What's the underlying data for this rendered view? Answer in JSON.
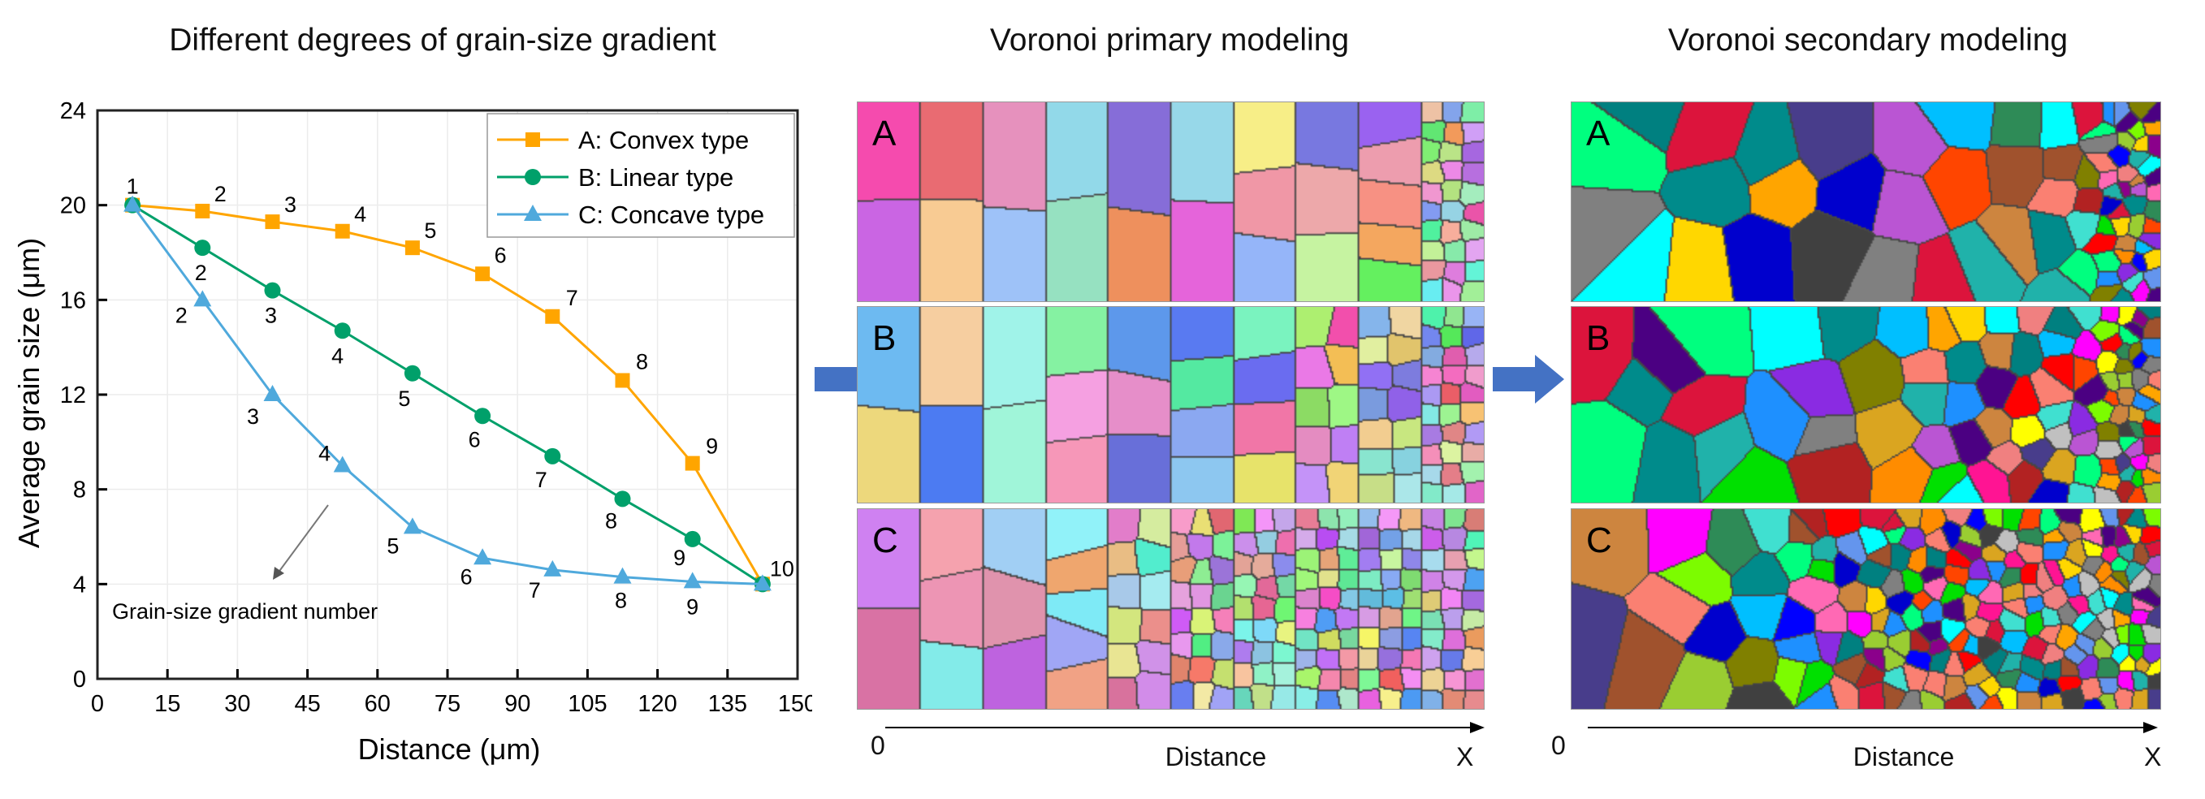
{
  "titles": {
    "chart": "Different degrees of grain-size gradient",
    "primary": "Voronoi primary modeling",
    "secondary": "Voronoi secondary modeling"
  },
  "chart_data": {
    "type": "line",
    "title": "Different degrees of grain-size gradient",
    "xlabel": "Distance (μm)",
    "ylabel": "Average grain size (μm)",
    "xlim": [
      0,
      150
    ],
    "ylim": [
      0,
      24
    ],
    "xticks": [
      "0",
      "15",
      "30",
      "45",
      "60",
      "75",
      "90",
      "105",
      "120",
      "135",
      "150"
    ],
    "yticks": [
      "0",
      "4",
      "8",
      "12",
      "16",
      "20",
      "24"
    ],
    "grid": true,
    "legend_position": "top-right",
    "x": [
      7.5,
      22.5,
      37.5,
      52.5,
      67.5,
      82.5,
      97.5,
      112.5,
      127.5,
      142.5
    ],
    "point_labels": [
      "1",
      "2",
      "3",
      "4",
      "5",
      "6",
      "7",
      "8",
      "9",
      "10"
    ],
    "series": [
      {
        "name": "A: Convex type",
        "marker": "square",
        "color": "#FFA500",
        "values": [
          20,
          19.75,
          19.3,
          18.9,
          18.2,
          17.1,
          15.3,
          12.6,
          9.1,
          4
        ]
      },
      {
        "name": "B: Linear type",
        "marker": "circle",
        "color": "#00A06A",
        "values": [
          20,
          18.2,
          16.4,
          14.7,
          12.9,
          11.1,
          9.4,
          7.6,
          5.9,
          4
        ]
      },
      {
        "name": "C: Concave type",
        "marker": "triangle",
        "color": "#4FA9DC",
        "values": [
          20,
          16.0,
          12.0,
          9.0,
          6.4,
          5.1,
          4.6,
          4.3,
          4.1,
          4
        ]
      }
    ],
    "annotation": "Grain-size gradient number"
  },
  "panels": {
    "labels": [
      "A",
      "B",
      "C"
    ]
  },
  "axes_bottom": {
    "origin": "0",
    "label": "Distance",
    "end": "X"
  },
  "colors": {
    "arrow": "#4472C4"
  }
}
